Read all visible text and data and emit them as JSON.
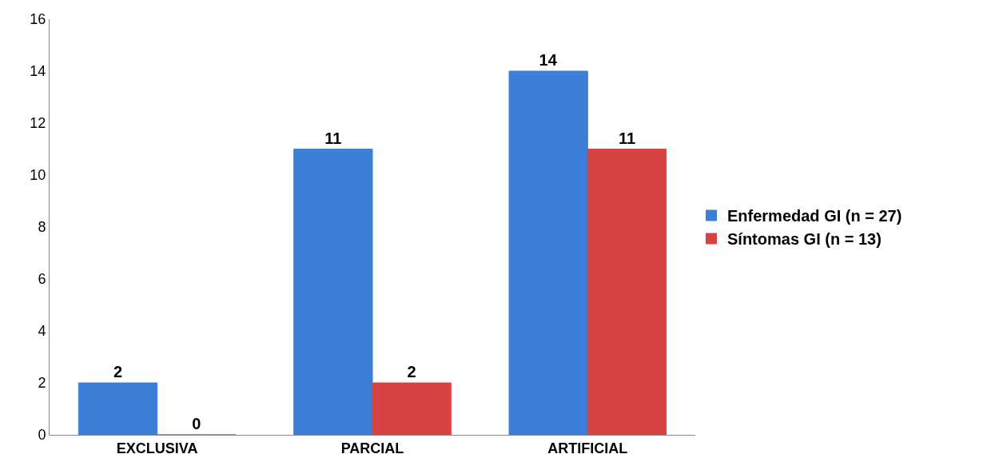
{
  "chart_data": {
    "type": "bar",
    "categories": [
      "EXCLUSIVA",
      "PARCIAL",
      "ARTIFICIAL"
    ],
    "series": [
      {
        "name": "Enfermedad GI (n = 27)",
        "color": "#3b7fd8",
        "values": [
          2,
          11,
          14
        ]
      },
      {
        "name": "Síntomas GI (n = 13)",
        "color": "#d84242",
        "values": [
          0,
          2,
          11
        ]
      }
    ],
    "ylim": [
      0,
      16
    ],
    "yticks": [
      0,
      2,
      4,
      6,
      8,
      10,
      12,
      14,
      16
    ],
    "grid": false,
    "legend": "right",
    "data_labels": true
  }
}
